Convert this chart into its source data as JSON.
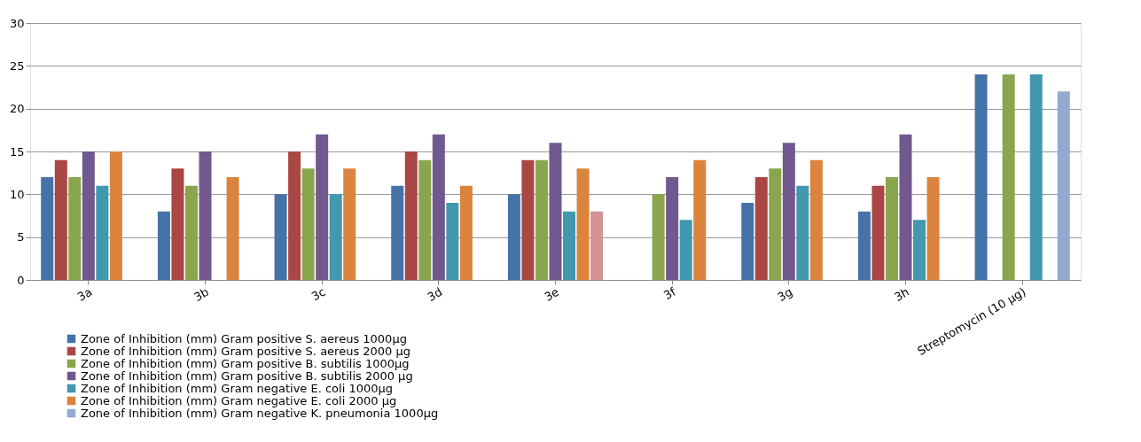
{
  "chart_data": {
    "type": "bar",
    "categories": [
      "3a",
      "3b",
      "3c",
      "3d",
      "3e",
      "3f",
      "3g",
      "3h",
      "Streptomycin (10 µg)"
    ],
    "series": [
      {
        "name": "Zone of Inhibition (mm) Gram positive S. aereus 1000µg",
        "color": "#4572a7",
        "values": [
          12,
          8,
          10,
          11,
          10,
          null,
          9,
          8,
          24
        ]
      },
      {
        "name": "Zone of Inhibition (mm) Gram positive S. aereus 2000 µg",
        "color": "#aa4643",
        "values": [
          14,
          13,
          15,
          15,
          14,
          null,
          12,
          11,
          null
        ]
      },
      {
        "name": "Zone of Inhibition (mm) Gram positive B. subtilis 1000µg",
        "color": "#89a54e",
        "values": [
          12,
          11,
          13,
          14,
          14,
          10,
          13,
          12,
          24
        ]
      },
      {
        "name": "Zone of Inhibition (mm) Gram positive B. subtilis 2000 µg",
        "color": "#71588f",
        "values": [
          15,
          15,
          17,
          17,
          16,
          12,
          16,
          17,
          null
        ]
      },
      {
        "name": "Zone of Inhibition (mm) Gram negative E. coli 1000µg",
        "color": "#4198af",
        "values": [
          11,
          null,
          10,
          9,
          8,
          7,
          11,
          7,
          24
        ]
      },
      {
        "name": "Zone of Inhibition (mm) Gram negative E. coli 2000 µg",
        "color": "#db843d",
        "values": [
          15,
          12,
          13,
          11,
          13,
          14,
          14,
          12,
          null
        ]
      },
      {
        "name": "Zone of Inhibition (mm) Gram negative K. pneumonia 1000µg",
        "color": "#93a9cf",
        "values": [
          null,
          null,
          null,
          null,
          8,
          null,
          null,
          null,
          22
        ],
        "colors": [
          null,
          null,
          null,
          null,
          "#d49294",
          null,
          null,
          null,
          "#93a9cf"
        ]
      }
    ],
    "ylim": [
      0,
      30
    ],
    "yticks": [
      0,
      5,
      10,
      15,
      20,
      25,
      30
    ],
    "grid": "y",
    "legend": "bottom left"
  }
}
